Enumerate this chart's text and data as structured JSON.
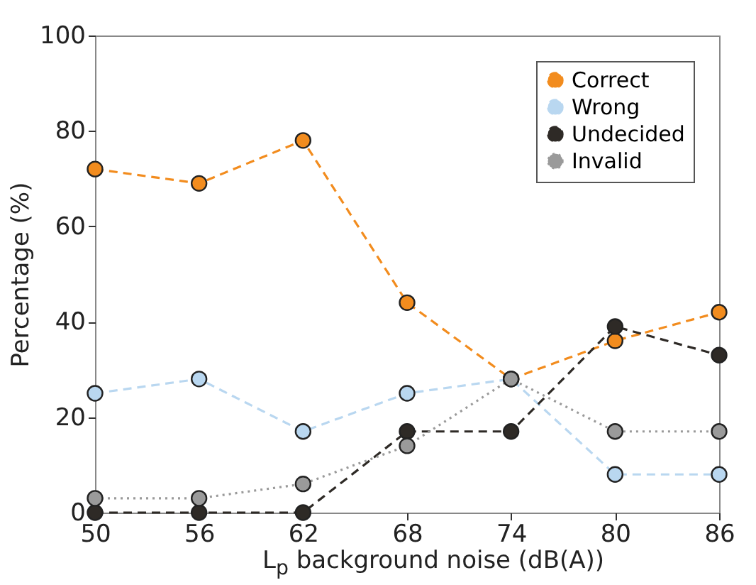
{
  "chart_data": {
    "type": "line",
    "xlabel": "L$_{p}$ background noise (dB(A))",
    "ylabel": "Percentage (%)",
    "x": [
      50,
      56,
      62,
      68,
      74,
      80,
      86
    ],
    "series": [
      {
        "name": "Correct",
        "color": "#f28c1e",
        "line_style": "dashed",
        "values": [
          72,
          69,
          78,
          44,
          28,
          36,
          42
        ]
      },
      {
        "name": "Wrong",
        "color": "#b9d7f0",
        "line_style": "dashed",
        "values": [
          25,
          28,
          17,
          25,
          28,
          8,
          8
        ]
      },
      {
        "name": "Undecided",
        "color": "#2e2a26",
        "line_style": "dashed",
        "values": [
          0,
          0,
          0,
          17,
          17,
          39,
          33
        ]
      },
      {
        "name": "Invalid",
        "color": "#9a9a9a",
        "line_style": "dotted",
        "values": [
          3,
          3,
          6,
          14,
          28,
          17,
          17
        ]
      }
    ],
    "xlim": [
      50,
      86
    ],
    "ylim": [
      0,
      100
    ],
    "xticks": [
      50,
      56,
      62,
      68,
      74,
      80,
      86
    ],
    "yticks": [
      0,
      20,
      40,
      60,
      80,
      100
    ],
    "grid": false,
    "legend": "top right",
    "marker": "circle"
  }
}
